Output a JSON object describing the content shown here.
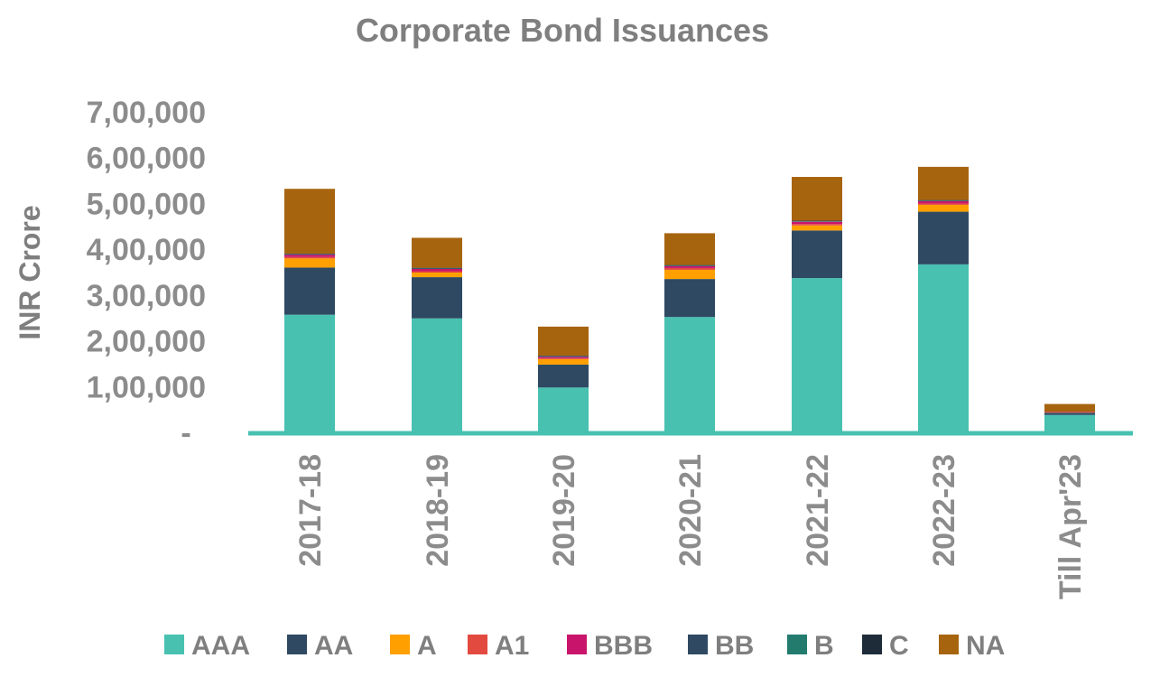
{
  "chart_data": {
    "type": "bar",
    "stacked": true,
    "title": "Corporate Bond Issuances",
    "ylabel": "INR Crore",
    "xlabel": "",
    "ylim": [
      0,
      700000
    ],
    "y_ticks": [
      {
        "value": 0,
        "label": "-"
      },
      {
        "value": 100000,
        "label": "1,00,000"
      },
      {
        "value": 200000,
        "label": "2,00,000"
      },
      {
        "value": 300000,
        "label": "3,00,000"
      },
      {
        "value": 400000,
        "label": "4,00,000"
      },
      {
        "value": 500000,
        "label": "5,00,000"
      },
      {
        "value": 600000,
        "label": "6,00,000"
      },
      {
        "value": 700000,
        "label": "7,00,000"
      }
    ],
    "grid": false,
    "legend_position": "bottom",
    "categories": [
      "2017-18",
      "2018-19",
      "2019-20",
      "2020-21",
      "2021-22",
      "2022-23",
      "Till Apr'23"
    ],
    "series": [
      {
        "name": "AAA",
        "color": "#48c1b1",
        "values": [
          257000,
          249000,
          98000,
          252000,
          337000,
          367000,
          38000
        ]
      },
      {
        "name": "AA",
        "color": "#2f4963",
        "values": [
          103000,
          90000,
          50000,
          83000,
          104000,
          115000,
          5000
        ]
      },
      {
        "name": "A",
        "color": "#ffa000",
        "values": [
          20000,
          10000,
          12000,
          20000,
          11000,
          15000,
          1000
        ]
      },
      {
        "name": "A1",
        "color": "#e34a3f",
        "values": [
          3000,
          3000,
          2000,
          4000,
          3000,
          3000,
          500
        ]
      },
      {
        "name": "BBB",
        "color": "#c8156b",
        "values": [
          5000,
          5000,
          3000,
          4000,
          5000,
          5000,
          500
        ]
      },
      {
        "name": "BB",
        "color": "#2f4963",
        "values": [
          1000,
          1000,
          1000,
          1000,
          1000,
          1000,
          0
        ]
      },
      {
        "name": "B",
        "color": "#237b6e",
        "values": [
          1000,
          1000,
          1000,
          1000,
          1000,
          1000,
          0
        ]
      },
      {
        "name": "C",
        "color": "#1e2c3a",
        "values": [
          500,
          500,
          500,
          500,
          500,
          500,
          0
        ]
      },
      {
        "name": "NA",
        "color": "#a7640f",
        "values": [
          141500,
          65500,
          63500,
          69500,
          95500,
          72500,
          17000
        ]
      }
    ]
  }
}
